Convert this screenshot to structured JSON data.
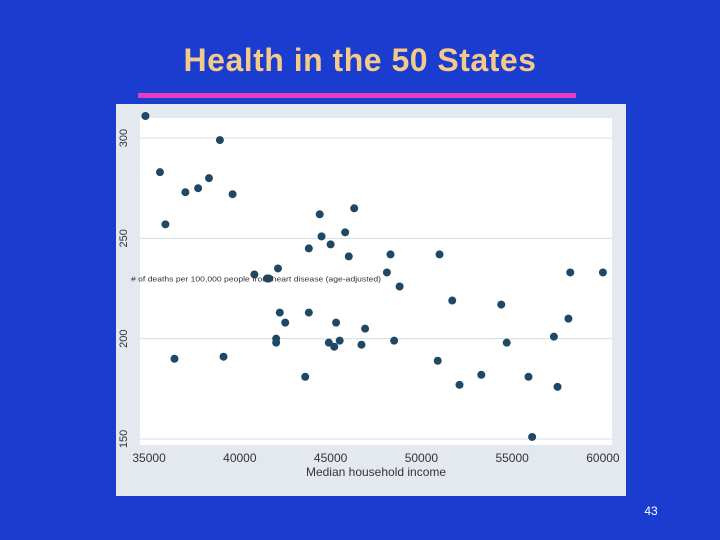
{
  "slide": {
    "title": "Health in the 50 States",
    "page_number": "43",
    "colors": {
      "background": "#1a3dcf",
      "title": "#f4c98a",
      "rule": "#e63cc0",
      "panel": "#e4e9ef",
      "plot_area": "#ffffff",
      "point": "#1f4866"
    }
  },
  "chart_data": {
    "type": "scatter",
    "title": "",
    "xlabel": "Median household income",
    "ylabel": "# of deaths per 100,000 people from heart disease (age-adjusted)",
    "xlim": [
      34500,
      60500
    ],
    "ylim": [
      147,
      310
    ],
    "xticks": [
      35000,
      40000,
      45000,
      50000,
      55000,
      60000
    ],
    "yticks": [
      150,
      200,
      250,
      300
    ],
    "grid": true,
    "points": [
      [
        34800,
        311
      ],
      [
        35600,
        283
      ],
      [
        35900,
        257
      ],
      [
        36400,
        190
      ],
      [
        37000,
        273
      ],
      [
        37700,
        275
      ],
      [
        38300,
        280
      ],
      [
        38900,
        299
      ],
      [
        39100,
        191
      ],
      [
        39600,
        272
      ],
      [
        40800,
        232
      ],
      [
        41500,
        230
      ],
      [
        41600,
        230
      ],
      [
        42000,
        198
      ],
      [
        42000,
        200
      ],
      [
        42100,
        235
      ],
      [
        42200,
        213
      ],
      [
        42500,
        208
      ],
      [
        43600,
        181
      ],
      [
        43800,
        245
      ],
      [
        43800,
        213
      ],
      [
        44400,
        262
      ],
      [
        44500,
        251
      ],
      [
        44900,
        198
      ],
      [
        45000,
        247
      ],
      [
        45200,
        196
      ],
      [
        45300,
        208
      ],
      [
        45500,
        199
      ],
      [
        45800,
        253
      ],
      [
        46000,
        241
      ],
      [
        46300,
        265
      ],
      [
        46700,
        197
      ],
      [
        46900,
        205
      ],
      [
        48100,
        233
      ],
      [
        48300,
        242
      ],
      [
        48500,
        199
      ],
      [
        48800,
        226
      ],
      [
        50900,
        189
      ],
      [
        51000,
        242
      ],
      [
        51700,
        219
      ],
      [
        52100,
        177
      ],
      [
        53300,
        182
      ],
      [
        54400,
        217
      ],
      [
        54700,
        198
      ],
      [
        55900,
        181
      ],
      [
        56100,
        151
      ],
      [
        57300,
        201
      ],
      [
        57500,
        176
      ],
      [
        58100,
        210
      ],
      [
        58200,
        233
      ],
      [
        60000,
        233
      ]
    ]
  }
}
